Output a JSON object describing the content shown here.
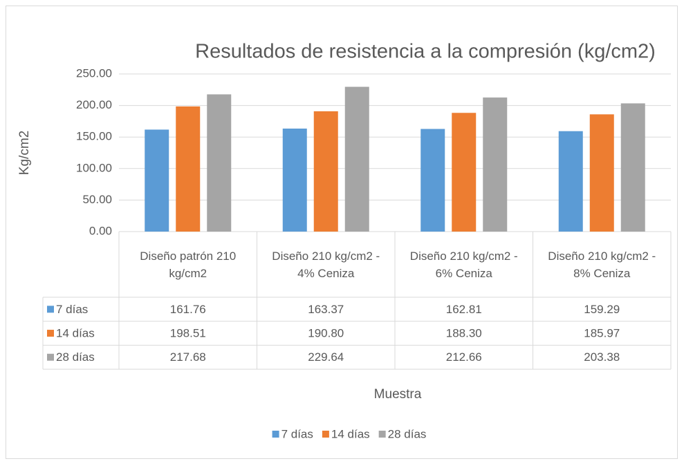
{
  "chart_data": {
    "type": "bar",
    "title": "Resultados de resistencia a la compresión (kg/cm2)",
    "y_label": "Kg/cm2",
    "x_label": "Muestra",
    "categories": [
      "Diseño patrón 210 kg/cm2",
      "Diseño 210 kg/cm2 - 4% Ceniza",
      "Diseño 210 kg/cm2 - 6% Ceniza",
      "Diseño 210 kg/cm2 - 8% Ceniza"
    ],
    "series": [
      {
        "name": "7 días",
        "color": "#5b9bd5",
        "values": [
          161.76,
          163.37,
          162.81,
          159.29
        ],
        "value_labels": [
          "161.76",
          "163.37",
          "162.81",
          "159.29"
        ]
      },
      {
        "name": "14 días",
        "color": "#ed7d31",
        "values": [
          198.51,
          190.8,
          188.3,
          185.97
        ],
        "value_labels": [
          "198.51",
          "190.80",
          "188.30",
          "185.97"
        ]
      },
      {
        "name": "28 días",
        "color": "#a5a5a5",
        "values": [
          217.68,
          229.64,
          212.66,
          203.38
        ],
        "value_labels": [
          "217.68",
          "229.64",
          "212.66",
          "203.38"
        ]
      }
    ],
    "ylim": [
      0,
      250
    ],
    "yticks": [
      {
        "value": 0,
        "label": "0.00"
      },
      {
        "value": 50,
        "label": "50.00"
      },
      {
        "value": 100,
        "label": "100.00"
      },
      {
        "value": 150,
        "label": "150.00"
      },
      {
        "value": 200,
        "label": "200.00"
      },
      {
        "value": 250,
        "label": "250.00"
      }
    ],
    "grid": true,
    "legend": "bottom",
    "data_table": true
  }
}
